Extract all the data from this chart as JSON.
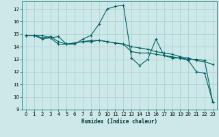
{
  "title": "",
  "xlabel": "Humidex (Indice chaleur)",
  "bg_color": "#cce8e8",
  "grid_color": "#aacccc",
  "line_color": "#006060",
  "xlim": [
    -0.5,
    23.5
  ],
  "ylim": [
    9,
    17.6
  ],
  "yticks": [
    9,
    10,
    11,
    12,
    13,
    14,
    15,
    16,
    17
  ],
  "xticks": [
    0,
    1,
    2,
    3,
    4,
    5,
    6,
    7,
    8,
    9,
    10,
    11,
    12,
    13,
    14,
    15,
    16,
    17,
    18,
    19,
    20,
    21,
    22,
    23
  ],
  "line1_x": [
    0,
    1,
    2,
    3,
    4,
    5,
    6,
    7,
    8,
    9,
    10,
    11,
    12,
    13,
    14,
    15,
    16,
    17,
    18,
    19,
    20,
    21,
    22,
    23
  ],
  "line1_y": [
    14.9,
    14.9,
    14.9,
    14.7,
    14.8,
    14.2,
    14.2,
    14.6,
    14.9,
    15.8,
    17.0,
    17.2,
    17.3,
    13.1,
    12.5,
    13.0,
    14.6,
    13.3,
    13.1,
    13.1,
    12.9,
    12.0,
    11.9,
    9.6
  ],
  "line2_x": [
    0,
    1,
    2,
    3,
    4,
    5,
    6,
    7,
    8,
    9,
    10,
    11,
    12,
    13,
    14,
    15,
    16,
    17,
    18,
    19,
    20,
    21,
    22,
    23
  ],
  "line2_y": [
    14.9,
    14.9,
    14.7,
    14.8,
    14.4,
    14.2,
    14.3,
    14.4,
    14.5,
    14.5,
    14.4,
    14.3,
    14.2,
    14.0,
    13.9,
    13.8,
    13.6,
    13.5,
    13.4,
    13.2,
    13.1,
    12.9,
    12.8,
    12.6
  ],
  "line3_x": [
    0,
    1,
    2,
    3,
    4,
    5,
    6,
    7,
    8,
    9,
    10,
    11,
    12,
    13,
    14,
    15,
    16,
    17,
    18,
    19,
    20,
    21,
    22,
    23
  ],
  "line3_y": [
    14.9,
    14.9,
    14.6,
    14.7,
    14.2,
    14.2,
    14.3,
    14.4,
    14.4,
    14.5,
    14.4,
    14.3,
    14.2,
    13.6,
    13.5,
    13.5,
    13.4,
    13.3,
    13.2,
    13.1,
    13.0,
    13.0,
    12.9,
    9.6
  ]
}
